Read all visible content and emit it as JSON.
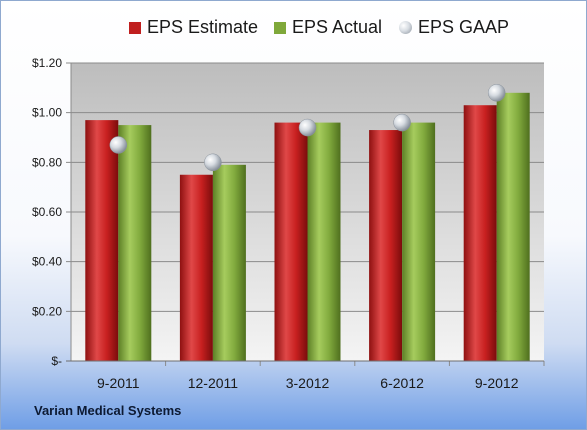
{
  "chart_data": {
    "type": "bar",
    "categories": [
      "9-2011",
      "12-2011",
      "3-2012",
      "6-2012",
      "9-2012"
    ],
    "series": [
      {
        "name": "EPS Estimate",
        "kind": "bar",
        "color": "#c01f1f",
        "values": [
          0.97,
          0.75,
          0.96,
          0.93,
          1.03
        ]
      },
      {
        "name": "EPS Actual",
        "kind": "bar",
        "color": "#7fa83a",
        "values": [
          0.95,
          0.79,
          0.96,
          0.96,
          1.08
        ]
      },
      {
        "name": "EPS GAAP",
        "kind": "marker",
        "color": "#b8bec6",
        "values": [
          0.87,
          0.8,
          0.94,
          0.96,
          1.08
        ]
      }
    ],
    "ylim": [
      0,
      1.2
    ],
    "yticks": [
      0,
      0.2,
      0.4,
      0.6,
      0.8,
      1.0,
      1.2
    ],
    "ytick_labels": [
      "$-",
      "$0.20",
      "$0.40",
      "$0.60",
      "$0.80",
      "$1.00",
      "$1.20"
    ],
    "grid": true,
    "legend_position": "top"
  },
  "footer": {
    "company": "Varian Medical Systems"
  }
}
